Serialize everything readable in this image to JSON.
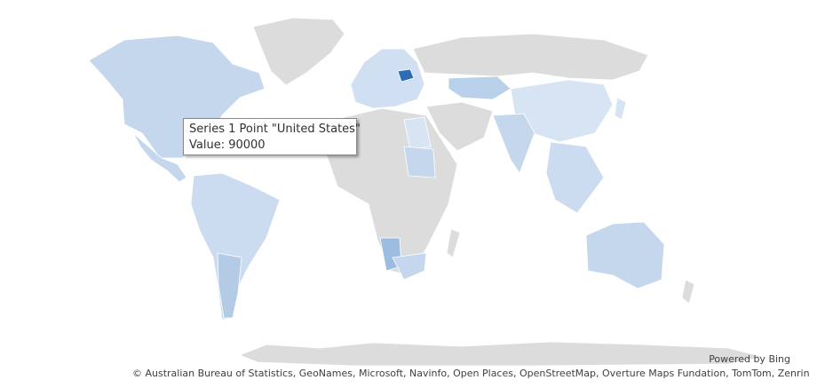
{
  "map": {
    "type": "filled-map",
    "series_name": "Series 1",
    "colors": {
      "no_data": "#dcdcdc",
      "low": "#d6e4f3",
      "mid": "#b9d0ea",
      "high": "#2e6db4"
    }
  },
  "tooltip": {
    "point_line": "Series 1 Point \"United States\"",
    "value_line": "Value: 90000"
  },
  "credits": {
    "powered_by": "Powered by Bing",
    "attribution": "© Australian Bureau of Statistics, GeoNames, Microsoft, Navinfo, Open Places, OpenStreetMap, Overture Maps Fundation, TomTom, Zenrin"
  }
}
